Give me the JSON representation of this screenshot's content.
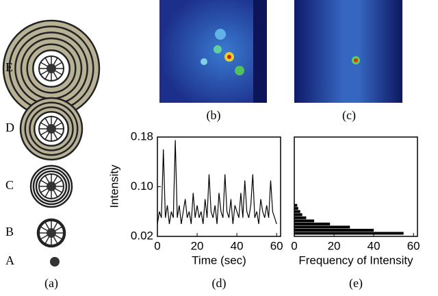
{
  "diagram": {
    "labels": [
      "E",
      "D",
      "C",
      "B",
      "A"
    ],
    "caption": "(a)"
  },
  "images": [
    {
      "caption": "(b)"
    },
    {
      "caption": "(c)"
    }
  ],
  "chart_data": [
    {
      "type": "line",
      "caption": "(d)",
      "ylabel": "Intensity",
      "xlabel": "Time (sec)",
      "color": "#000000",
      "x": [
        0,
        1,
        2,
        3,
        4,
        5,
        6,
        7,
        8,
        9,
        10,
        11,
        12,
        13,
        14,
        15,
        16,
        17,
        18,
        19,
        20,
        21,
        22,
        23,
        24,
        25,
        26,
        27,
        28,
        29,
        30,
        31,
        32,
        33,
        34,
        35,
        36,
        37,
        38,
        39,
        40,
        41,
        42,
        43,
        44,
        45,
        46,
        47,
        48,
        49,
        50,
        51,
        52,
        53,
        54,
        55,
        56,
        57,
        58,
        59,
        60
      ],
      "values": [
        0.04,
        0.06,
        0.05,
        0.16,
        0.05,
        0.07,
        0.04,
        0.06,
        0.05,
        0.175,
        0.05,
        0.07,
        0.04,
        0.06,
        0.08,
        0.05,
        0.06,
        0.04,
        0.09,
        0.05,
        0.07,
        0.05,
        0.06,
        0.04,
        0.08,
        0.05,
        0.12,
        0.06,
        0.05,
        0.07,
        0.04,
        0.09,
        0.06,
        0.05,
        0.12,
        0.06,
        0.05,
        0.08,
        0.04,
        0.07,
        0.06,
        0.05,
        0.09,
        0.05,
        0.11,
        0.06,
        0.05,
        0.07,
        0.12,
        0.05,
        0.06,
        0.04,
        0.08,
        0.06,
        0.05,
        0.07,
        0.05,
        0.11,
        0.06,
        0.05,
        0.04
      ],
      "xlim": [
        0,
        62
      ],
      "xticks": [
        0,
        20,
        40,
        60
      ],
      "ylim": [
        0.02,
        0.18
      ],
      "yticks": [
        0.02,
        {
          "value": 0.1,
          "label": "0.10"
        },
        0.18
      ]
    },
    {
      "type": "hbar",
      "caption": "(e)",
      "xlabel": "Frequency of Intensity",
      "color": "#000000",
      "y": [
        0.025,
        0.03,
        0.035,
        0.04,
        0.045,
        0.05,
        0.055,
        0.06,
        0.065,
        0.07
      ],
      "values": [
        55,
        40,
        28,
        18,
        10,
        6,
        4,
        3,
        2,
        1.5
      ],
      "xlim": [
        0,
        62
      ],
      "xticks": [
        0,
        20,
        40,
        60
      ],
      "ylim": [
        0.02,
        0.18
      ]
    }
  ]
}
